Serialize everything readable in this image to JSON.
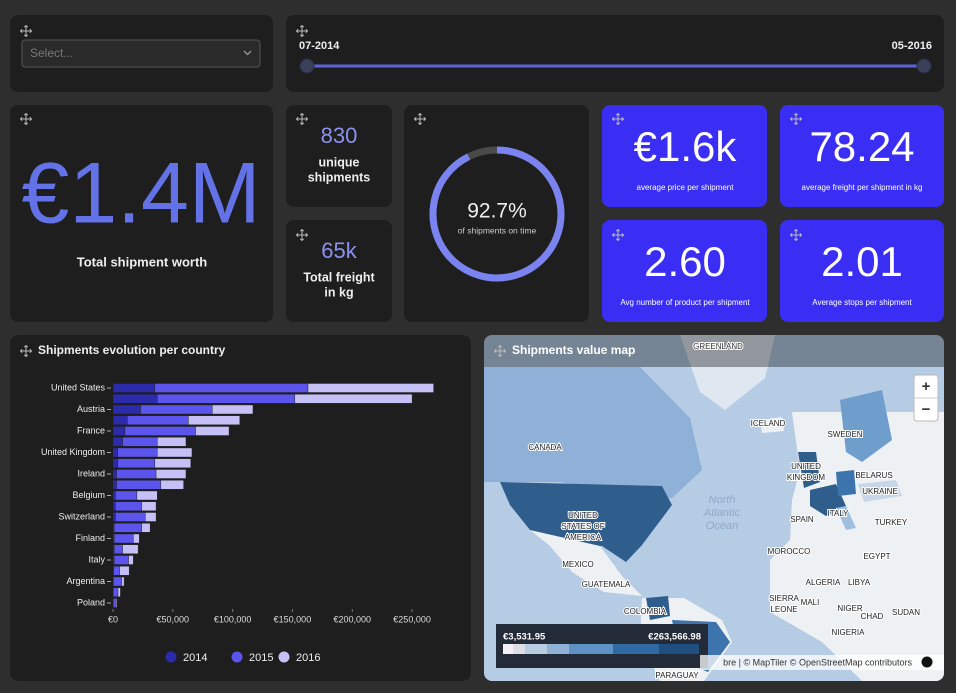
{
  "filter": {
    "placeholder": "Select..."
  },
  "date_range": {
    "start": "07-2014",
    "end": "05-2016"
  },
  "kpis": {
    "total_worth": {
      "value": "€1.4M",
      "label": "Total shipment worth"
    },
    "unique_shipments": {
      "value": "830",
      "label": [
        "unique",
        "shipments"
      ]
    },
    "total_freight": {
      "value": "65k",
      "label": [
        "Total freight",
        "in kg"
      ]
    },
    "avg_price": {
      "value": "€1.6k",
      "label": "average price per shipment"
    },
    "avg_freight": {
      "value": "78.24",
      "label": "average freight per shipment in kg"
    },
    "avg_products": {
      "value": "2.60",
      "label": "Avg number of product per shipment"
    },
    "avg_stops": {
      "value": "2.01",
      "label": "Average stops per shipment"
    }
  },
  "gauge": {
    "value": 92.7,
    "value_label": "92.7%",
    "label": "of shipments on time",
    "lim": [
      0,
      100
    ]
  },
  "chart_data": {
    "type": "bar",
    "orientation": "horizontal",
    "stacked": true,
    "title": "Shipments evolution per country",
    "categories": [
      "United States",
      null,
      "Austria",
      null,
      "France",
      null,
      "United Kingdom",
      null,
      "Ireland",
      null,
      "Belgium",
      null,
      "Switzerland",
      null,
      "Finland",
      null,
      "Italy",
      null,
      "Argentina",
      null,
      "Poland"
    ],
    "series": [
      {
        "name": "2014",
        "color": "#2b2bab",
        "values": [
          35000,
          37000,
          23000,
          12000,
          10000,
          8000,
          4000,
          4000,
          3000,
          3000,
          2000,
          2000,
          2000,
          1000,
          1000,
          1000,
          1000,
          500,
          300,
          200,
          100
        ]
      },
      {
        "name": "2015",
        "color": "#5b55ee",
        "values": [
          128000,
          115000,
          60000,
          51000,
          59000,
          29000,
          33000,
          31000,
          33000,
          37000,
          18000,
          22000,
          25000,
          23000,
          16000,
          7000,
          12000,
          5000,
          7000,
          4000,
          2000
        ]
      },
      {
        "name": "2016",
        "color": "#c5c1f7",
        "values": [
          105000,
          98000,
          34000,
          43000,
          28000,
          24000,
          29000,
          30000,
          25000,
          19000,
          17000,
          12000,
          9000,
          7000,
          5000,
          13000,
          4000,
          8000,
          2000,
          2000,
          1000
        ]
      }
    ],
    "xlim": [
      0,
      270000
    ],
    "xticks": [
      {
        "value": 0,
        "label": "€0"
      },
      {
        "value": 50000,
        "label": "€50,000"
      },
      {
        "value": 100000,
        "label": "€100,000"
      },
      {
        "value": 150000,
        "label": "€150,000"
      },
      {
        "value": 200000,
        "label": "€200,000"
      },
      {
        "value": 250000,
        "label": "€250,000"
      }
    ],
    "legend": "bottom"
  },
  "map": {
    "title": "Shipments value map",
    "labels": [
      [
        "GREENLAND"
      ],
      [
        "CANADA"
      ],
      [
        "ICELAND"
      ],
      [
        "SWEDEN"
      ],
      [
        "UNITED",
        "KINGDOM"
      ],
      [
        "BELARUS"
      ],
      [
        "UKRAINE"
      ],
      [
        "SPAIN"
      ],
      [
        "ITALY"
      ],
      [
        "TURKEY"
      ],
      [
        "UNITED",
        "STATES OF",
        "AMERICA"
      ],
      [
        "MEXICO"
      ],
      [
        "GUATEMALA"
      ],
      [
        "COLOMBIA"
      ],
      [
        "MOROCCO"
      ],
      [
        "EGYPT"
      ],
      [
        "ALGERIA"
      ],
      [
        "LIBYA"
      ],
      [
        "MALI"
      ],
      [
        "NIGER"
      ],
      [
        "CHAD"
      ],
      [
        "SUDAN"
      ],
      [
        "SIERRA",
        "LEONE"
      ],
      [
        "NIGERIA"
      ],
      [
        "PARAGUAY"
      ]
    ],
    "ocean_label": [
      "North",
      "Atlantic",
      "Ocean"
    ],
    "legend": {
      "min": "€3,531.95",
      "max": "€263,566.98"
    },
    "attribution": "bre | © MapTiler © OpenStreetMap contributors",
    "zoom_in": "+",
    "zoom_out": "−"
  }
}
